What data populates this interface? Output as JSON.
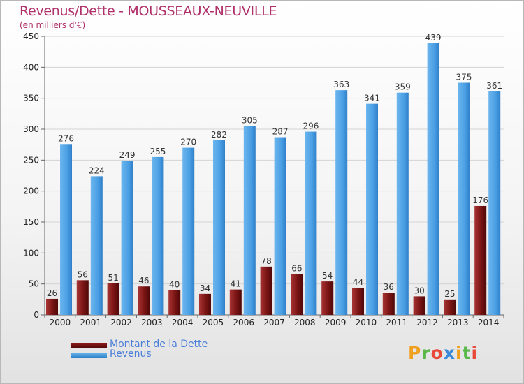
{
  "chart_data": {
    "type": "bar",
    "title": "Revenus/Dette - MOUSSEAUX-NEUVILLE",
    "subtitle": "(en milliers d'€)",
    "categories": [
      "2000",
      "2001",
      "2002",
      "2003",
      "2004",
      "2005",
      "2006",
      "2007",
      "2008",
      "2009",
      "2010",
      "2011",
      "2012",
      "2013",
      "2014"
    ],
    "series": [
      {
        "name": "Montant de la Dette",
        "values": [
          26,
          56,
          51,
          46,
          40,
          34,
          41,
          78,
          66,
          54,
          44,
          36,
          30,
          25,
          176
        ],
        "color": "#8b1a1a"
      },
      {
        "name": "Revenus",
        "values": [
          276,
          224,
          249,
          255,
          270,
          282,
          305,
          287,
          296,
          363,
          341,
          359,
          439,
          375,
          361
        ],
        "color": "#4fa3e6"
      }
    ],
    "ylim": [
      0,
      450
    ],
    "yticks": [
      0,
      50,
      100,
      150,
      200,
      250,
      300,
      350,
      400,
      450
    ],
    "grid": true,
    "legend_position": "bottom-left"
  },
  "branding": {
    "logo_letters": [
      "P",
      "r",
      "o",
      "x",
      "i",
      "t",
      "i"
    ],
    "logo_colors": [
      "#f0a020",
      "#58b848",
      "#e84a3a",
      "#3a8ad8",
      "#f0a020",
      "#58b848",
      "#e84a3a"
    ]
  }
}
